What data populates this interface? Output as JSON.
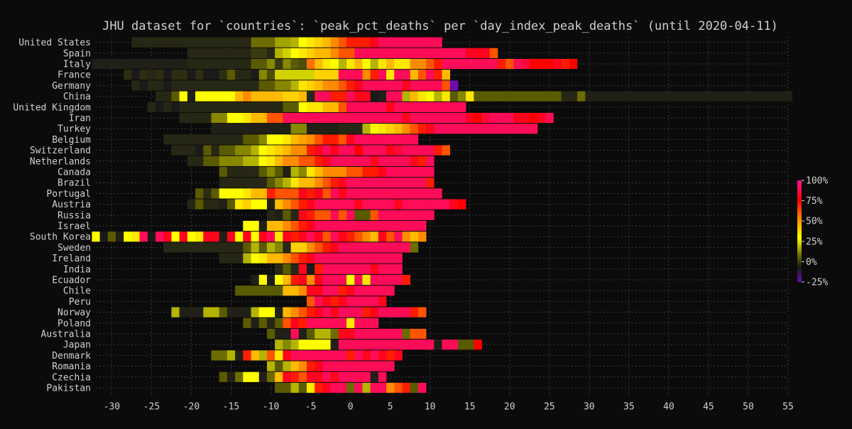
{
  "chart_data": {
    "type": "heatmap",
    "title": "JHU dataset for `countries`: `peak_pct_deaths` per `day_index_peak_deaths` (until 2020-04-11)",
    "xlabel": "",
    "ylabel": "",
    "xlim": [
      -32,
      55
    ],
    "x_ticks": [
      -30,
      -25,
      -20,
      -15,
      -10,
      -5,
      0,
      5,
      10,
      15,
      20,
      25,
      30,
      35,
      40,
      45,
      50,
      55
    ],
    "grid": true,
    "colorbar": {
      "min": -25,
      "max": 100,
      "ticks": [
        100,
        75,
        50,
        25,
        0,
        -25
      ],
      "tick_labels": [
        "100%",
        "75%",
        "50%",
        "25%",
        "0%",
        "-25%"
      ],
      "colors": [
        "#6a0dad",
        "#1a1a1a",
        "#5a5a00",
        "#d4d400",
        "#ffff00",
        "#ff8c00",
        "#ff0000",
        "#ff1493"
      ]
    },
    "countries": [
      {
        "name": "United States",
        "start": -27,
        "values": [
          2,
          2,
          2,
          2,
          2,
          2,
          2,
          2,
          2,
          2,
          2,
          2,
          2,
          2,
          2,
          12,
          12,
          12,
          18,
          18,
          20,
          25,
          30,
          35,
          40,
          50,
          60,
          70,
          70,
          70,
          80,
          90,
          90,
          90,
          90,
          90,
          90,
          90,
          90
        ]
      },
      {
        "name": "Spain",
        "start": -20,
        "values": [
          2,
          2,
          2,
          2,
          2,
          2,
          2,
          2,
          5,
          5,
          2,
          20,
          22,
          25,
          30,
          35,
          40,
          40,
          50,
          60,
          60,
          90,
          90,
          90,
          90,
          90,
          90,
          90,
          90,
          90,
          90,
          90,
          90,
          90,
          90,
          80,
          80,
          80,
          60
        ]
      },
      {
        "name": "Italy",
        "start": -32,
        "values": [
          1,
          1,
          1,
          1,
          1,
          1,
          1,
          1,
          1,
          1,
          1,
          1,
          2,
          2,
          2,
          2,
          2,
          2,
          2,
          2,
          10,
          10,
          15,
          5,
          15,
          10,
          8,
          55,
          40,
          30,
          25,
          20,
          30,
          40,
          25,
          20,
          30,
          40,
          30,
          30,
          50,
          50,
          60,
          70,
          90,
          90,
          90,
          90,
          90,
          90,
          90,
          70,
          60,
          90,
          85,
          75,
          75,
          75,
          80,
          70,
          75
        ]
      },
      {
        "name": "France",
        "start": -28,
        "values": [
          3,
          0,
          3,
          2,
          3,
          0,
          3,
          3,
          0,
          3,
          0,
          0,
          3,
          10,
          2,
          2,
          0,
          15,
          8,
          22,
          22,
          22,
          22,
          22,
          35,
          35,
          35,
          90,
          90,
          90,
          50,
          70,
          90,
          30,
          90,
          90,
          40,
          60,
          90,
          70,
          40
        ]
      },
      {
        "name": "Germany",
        "start": -27,
        "values": [
          2,
          0,
          2,
          2,
          0,
          2,
          2,
          2,
          2,
          2,
          2,
          2,
          2,
          2,
          2,
          2,
          10,
          10,
          15,
          15,
          20,
          30,
          35,
          40,
          50,
          50,
          60,
          70,
          80,
          90,
          90,
          90,
          90,
          90,
          80,
          90,
          90,
          90,
          90,
          60,
          -25
        ]
      },
      {
        "name": "China",
        "start": -24,
        "values": [
          2,
          2,
          10,
          25,
          1,
          25,
          25,
          25,
          25,
          25,
          40,
          50,
          40,
          40,
          40,
          40,
          35,
          35,
          40,
          2,
          90,
          90,
          70,
          70,
          90,
          80,
          80,
          0,
          1,
          90,
          90,
          20,
          40,
          30,
          25,
          20,
          30,
          10,
          15,
          30,
          10,
          10,
          10,
          10,
          10,
          10,
          10,
          10,
          10,
          10,
          10,
          2,
          2,
          12,
          1,
          1,
          1,
          1,
          1,
          1,
          1,
          1,
          1,
          1,
          1,
          1,
          1,
          1,
          1,
          1,
          1,
          1,
          1,
          1,
          1,
          1,
          1,
          1,
          1,
          1,
          1,
          1,
          1,
          1,
          1,
          1,
          1,
          1,
          1,
          1,
          0,
          1,
          1,
          1,
          1,
          1
        ]
      },
      {
        "name": "United Kingdom",
        "start": -25,
        "values": [
          2,
          0,
          2,
          0,
          2,
          2,
          2,
          2,
          2,
          2,
          2,
          2,
          2,
          2,
          2,
          2,
          2,
          10,
          10,
          25,
          30,
          30,
          40,
          40,
          60,
          90,
          90,
          90,
          90,
          90,
          80,
          90,
          90,
          90,
          90,
          90,
          90,
          90,
          90,
          90
        ]
      },
      {
        "name": "Iran",
        "start": -21,
        "values": [
          2,
          2,
          2,
          2,
          15,
          15,
          25,
          25,
          30,
          40,
          40,
          60,
          60,
          90,
          90,
          90,
          90,
          90,
          90,
          90,
          90,
          90,
          90,
          90,
          90,
          90,
          90,
          90,
          80,
          90,
          90,
          90,
          90,
          90,
          90,
          90,
          80,
          75,
          85,
          90,
          90,
          90,
          80,
          80,
          75,
          80,
          90
        ]
      },
      {
        "name": "Turkey",
        "start": -17,
        "values": [
          1,
          1,
          1,
          1,
          1,
          1,
          1,
          1,
          1,
          1,
          15,
          15,
          1,
          1,
          1,
          1,
          2,
          2,
          2,
          20,
          25,
          30,
          35,
          40,
          50,
          60,
          70,
          80,
          90,
          90,
          90,
          90,
          90,
          90,
          90,
          90,
          90,
          90,
          90,
          90,
          90
        ]
      },
      {
        "name": "Belgium",
        "start": -23,
        "values": [
          2,
          2,
          2,
          2,
          2,
          2,
          2,
          2,
          2,
          2,
          10,
          10,
          15,
          25,
          25,
          30,
          40,
          45,
          50,
          60,
          70,
          70,
          60,
          80,
          90,
          90,
          90,
          90,
          90,
          90,
          90,
          90
        ]
      },
      {
        "name": "Switzerland",
        "start": -22,
        "values": [
          2,
          2,
          2,
          0,
          10,
          2,
          10,
          10,
          15,
          15,
          20,
          25,
          30,
          35,
          40,
          50,
          50,
          70,
          80,
          90,
          80,
          90,
          90,
          75,
          90,
          90,
          90,
          80,
          85,
          90,
          90,
          90,
          90,
          70,
          60
        ]
      },
      {
        "name": "Netherlands",
        "start": -20,
        "values": [
          2,
          2,
          10,
          10,
          15,
          15,
          15,
          20,
          20,
          25,
          30,
          40,
          50,
          50,
          60,
          60,
          70,
          80,
          90,
          90,
          90,
          90,
          90,
          80,
          90,
          90,
          90,
          90,
          80,
          70,
          90
        ]
      },
      {
        "name": "Canada",
        "start": -16,
        "values": [
          10,
          2,
          2,
          2,
          2,
          10,
          15,
          10,
          1,
          20,
          15,
          30,
          40,
          50,
          50,
          50,
          60,
          60,
          70,
          70,
          80,
          90,
          90,
          90,
          90,
          90,
          90
        ]
      },
      {
        "name": "Brazil",
        "start": -16,
        "values": [
          2,
          2,
          2,
          2,
          2,
          2,
          10,
          15,
          20,
          30,
          40,
          40,
          50,
          60,
          70,
          80,
          90,
          90,
          90,
          90,
          90,
          90,
          90,
          90,
          90,
          90,
          70
        ]
      },
      {
        "name": "Portugal",
        "start": -19,
        "values": [
          10,
          3,
          10,
          25,
          25,
          25,
          30,
          40,
          40,
          70,
          60,
          60,
          60,
          80,
          70,
          80,
          60,
          90,
          80,
          90,
          90,
          90,
          90,
          90,
          90,
          90,
          90,
          90,
          90,
          90,
          90
        ]
      },
      {
        "name": "Austria",
        "start": -20,
        "values": [
          2,
          10,
          2,
          2,
          1,
          10,
          30,
          35,
          25,
          25,
          1,
          40,
          50,
          60,
          70,
          80,
          90,
          90,
          90,
          90,
          90,
          80,
          90,
          90,
          90,
          90,
          80,
          90,
          90,
          90,
          90,
          90,
          90,
          80,
          75
        ]
      },
      {
        "name": "Russia",
        "start": -10,
        "values": [
          2,
          1,
          10,
          2,
          80,
          70,
          60,
          60,
          90,
          60,
          90,
          10,
          10,
          60,
          90,
          90,
          90,
          90,
          90,
          90,
          90
        ]
      },
      {
        "name": "Israel",
        "start": -13,
        "values": [
          25,
          25,
          1,
          40,
          40,
          50,
          60,
          70,
          80,
          90,
          90,
          90,
          90,
          90,
          90,
          90,
          90,
          90,
          90,
          90,
          90,
          90,
          90
        ]
      },
      {
        "name": "South Korea",
        "start": -32,
        "values": [
          25,
          0,
          10,
          1,
          25,
          30,
          90,
          0,
          90,
          80,
          25,
          80,
          25,
          30,
          80,
          80,
          1,
          80,
          25,
          80,
          25,
          80,
          90,
          30,
          80,
          70,
          80,
          90,
          80,
          60,
          90,
          80,
          70,
          60,
          50,
          40,
          80,
          60,
          90,
          50,
          40,
          50
        ]
      },
      {
        "name": "Sweden",
        "start": -23,
        "values": [
          2,
          2,
          2,
          2,
          2,
          2,
          2,
          2,
          2,
          2,
          10,
          20,
          10,
          20,
          15,
          2,
          35,
          35,
          50,
          60,
          70,
          80,
          90,
          90,
          90,
          90,
          90,
          90,
          90,
          90,
          90,
          12
        ]
      },
      {
        "name": "Ireland",
        "start": -16,
        "values": [
          2,
          2,
          2,
          20,
          25,
          30,
          40,
          40,
          50,
          60,
          70,
          80,
          90,
          90,
          90,
          90,
          90,
          90,
          90,
          90,
          90,
          90,
          90
        ]
      },
      {
        "name": "India",
        "start": -9,
        "values": [
          2,
          10,
          2,
          80,
          0,
          70,
          90,
          90,
          90,
          90,
          90,
          90,
          80,
          90,
          90,
          90
        ]
      },
      {
        "name": "Ecuador",
        "start": -12,
        "values": [
          1,
          25,
          0,
          25,
          40,
          70,
          80,
          50,
          80,
          90,
          90,
          90,
          25,
          90,
          30,
          90,
          90,
          90,
          90,
          70
        ]
      },
      {
        "name": "Chile",
        "start": -14,
        "values": [
          10,
          10,
          10,
          10,
          10,
          10,
          40,
          40,
          50,
          80,
          80,
          90,
          90,
          70,
          80,
          90,
          90,
          90,
          90,
          90
        ]
      },
      {
        "name": "Peru",
        "start": -5,
        "values": [
          60,
          90,
          80,
          70,
          80,
          90,
          90,
          90,
          90,
          80
        ]
      },
      {
        "name": "Norway",
        "start": -22,
        "values": [
          20,
          1,
          1,
          1,
          20,
          20,
          10,
          1,
          1,
          1,
          20,
          25,
          25,
          1,
          40,
          50,
          60,
          70,
          80,
          90,
          80,
          90,
          90,
          90,
          70,
          80,
          90,
          90,
          90,
          90,
          70,
          60
        ]
      },
      {
        "name": "Poland",
        "start": -13,
        "values": [
          10,
          1,
          10,
          2,
          10,
          60,
          80,
          70,
          90,
          90,
          90,
          90,
          90,
          30,
          90,
          90,
          90
        ]
      },
      {
        "name": "Australia",
        "start": -10,
        "values": [
          10,
          1,
          1,
          90,
          1,
          10,
          20,
          20,
          12,
          80,
          80,
          90,
          90,
          90,
          90,
          90,
          90,
          12,
          60,
          60
        ]
      },
      {
        "name": "Japan",
        "start": -9,
        "values": [
          20,
          15,
          20,
          25,
          25,
          25,
          25,
          1,
          90,
          90,
          90,
          90,
          90,
          90,
          90,
          90,
          90,
          90,
          90,
          90,
          1,
          90,
          90,
          10,
          10,
          75
        ]
      },
      {
        "name": "Denmark",
        "start": -17,
        "values": [
          12,
          12,
          20,
          1,
          70,
          40,
          20,
          60,
          30,
          80,
          90,
          90,
          90,
          90,
          90,
          90,
          90,
          70,
          90,
          80,
          90,
          80,
          70,
          80
        ]
      },
      {
        "name": "Romania",
        "start": -10,
        "values": [
          20,
          10,
          20,
          40,
          50,
          70,
          80,
          90,
          90,
          90,
          90,
          90,
          90,
          90,
          90,
          90
        ]
      },
      {
        "name": "Czechia",
        "start": -16,
        "values": [
          10,
          1,
          12,
          25,
          25,
          1,
          12,
          40,
          80,
          70,
          60,
          80,
          80,
          90,
          80,
          90,
          90,
          90,
          90,
          1,
          90
        ]
      },
      {
        "name": "Pakistan",
        "start": -9,
        "values": [
          10,
          10,
          20,
          10,
          30,
          70,
          80,
          90,
          90,
          12,
          90,
          20,
          90,
          90,
          50,
          60,
          70,
          10,
          90
        ]
      }
    ]
  }
}
